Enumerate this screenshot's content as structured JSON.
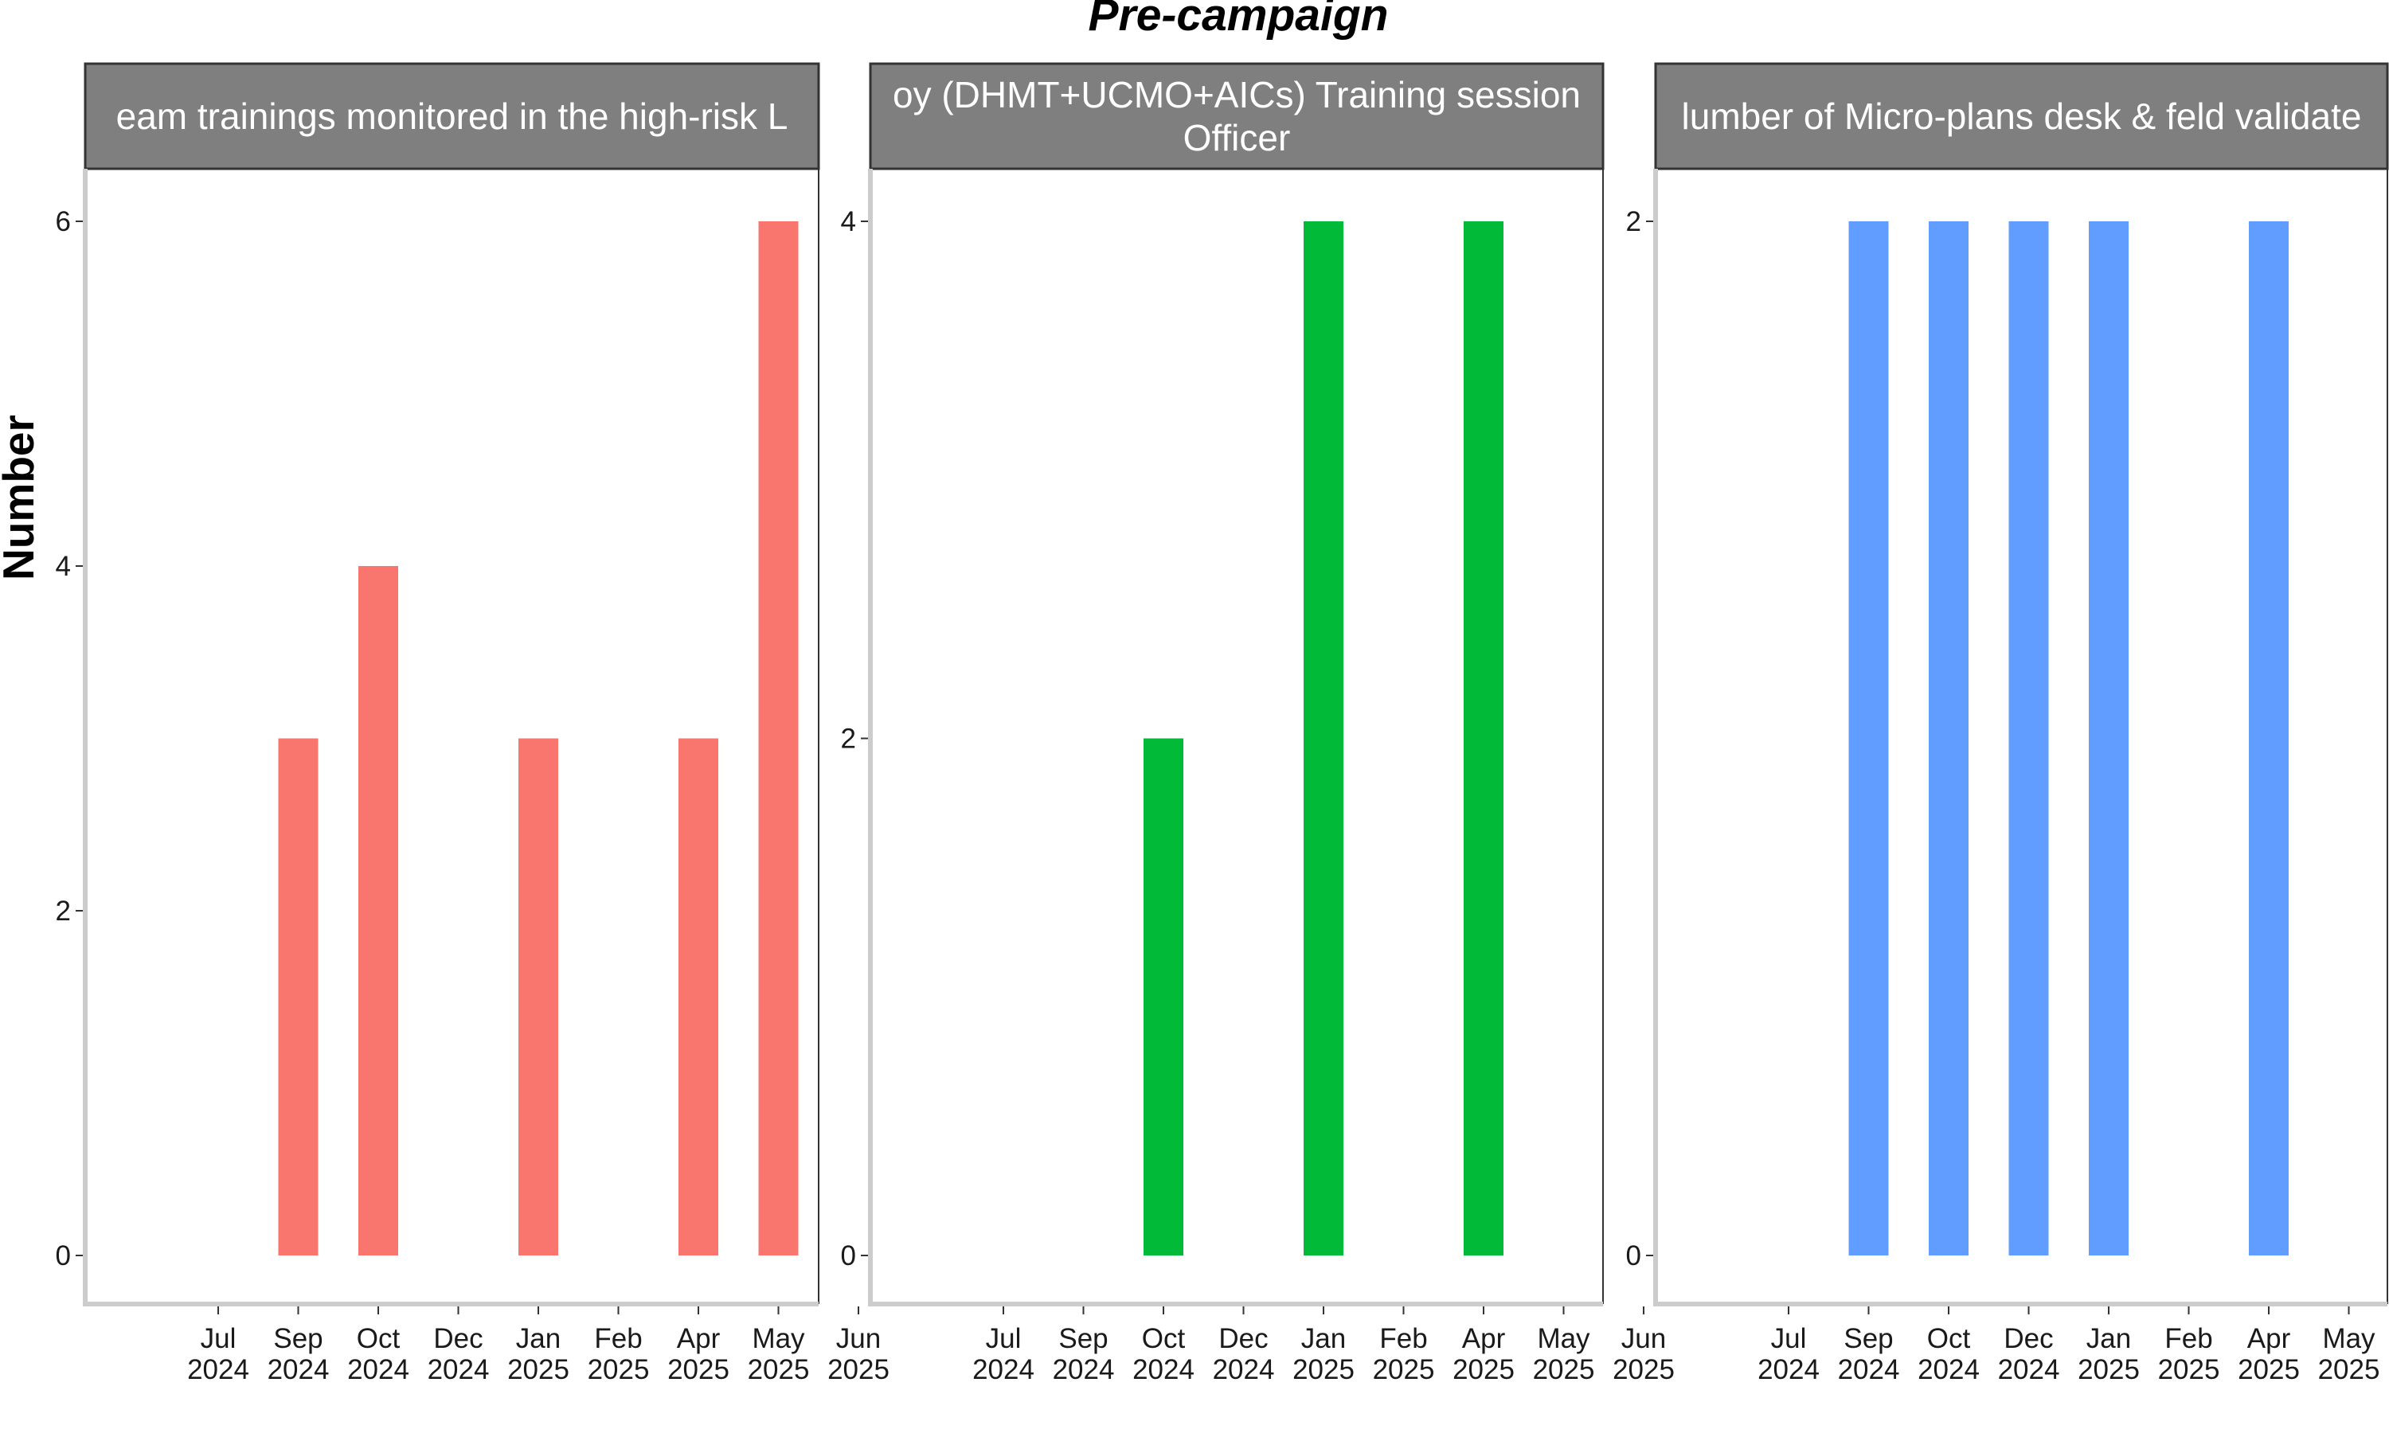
{
  "chart_data": {
    "type": "bar",
    "title": "Pre-campaign",
    "ylabel": "Number",
    "xlabel": "",
    "grid": false,
    "legend": "none",
    "x_ticks": [
      {
        "date": "2024-07",
        "month": "Jul",
        "year": "2024"
      },
      {
        "date": "2024-09",
        "month": "Sep",
        "year": "2024"
      },
      {
        "date": "2024-10",
        "month": "Oct",
        "year": "2024"
      },
      {
        "date": "2024-12",
        "month": "Dec",
        "year": "2024"
      },
      {
        "date": "2025-01",
        "month": "Jan",
        "year": "2025"
      },
      {
        "date": "2025-02",
        "month": "Feb",
        "year": "2025"
      },
      {
        "date": "2025-04",
        "month": "Apr",
        "year": "2025"
      },
      {
        "date": "2025-05",
        "month": "May",
        "year": "2025"
      },
      {
        "date": "2025-06",
        "month": "Jun",
        "year": "2025"
      }
    ],
    "panels": [
      {
        "strip": [
          "eam trainings monitored in the high-risk L"
        ],
        "color": "#F8766D",
        "ylim": [
          0,
          6
        ],
        "yticks": [
          "0",
          "2",
          "4",
          "6"
        ],
        "bars": [
          {
            "x": "2024-09",
            "value": 3
          },
          {
            "x": "2024-10",
            "value": 4
          },
          {
            "x": "2025-01",
            "value": 3
          },
          {
            "x": "2025-04",
            "value": 3
          },
          {
            "x": "2025-05",
            "value": 6
          }
        ]
      },
      {
        "strip": [
          "oy (DHMT+UCMO+AICs) Training session",
          "Officer"
        ],
        "color": "#00BA38",
        "ylim": [
          0,
          4
        ],
        "yticks": [
          "0",
          "2",
          "4"
        ],
        "bars": [
          {
            "x": "2024-10",
            "value": 2
          },
          {
            "x": "2025-01",
            "value": 4
          },
          {
            "x": "2025-04",
            "value": 4
          }
        ]
      },
      {
        "strip": [
          "lumber of Micro-plans desk & feld validate"
        ],
        "color": "#619CFF",
        "ylim": [
          0,
          2
        ],
        "yticks": [
          "0",
          "2"
        ],
        "bars": [
          {
            "x": "2024-09",
            "value": 2
          },
          {
            "x": "2024-10",
            "value": 2
          },
          {
            "x": "2024-12",
            "value": 2
          },
          {
            "x": "2025-01",
            "value": 2
          },
          {
            "x": "2025-04",
            "value": 2
          }
        ]
      }
    ]
  }
}
